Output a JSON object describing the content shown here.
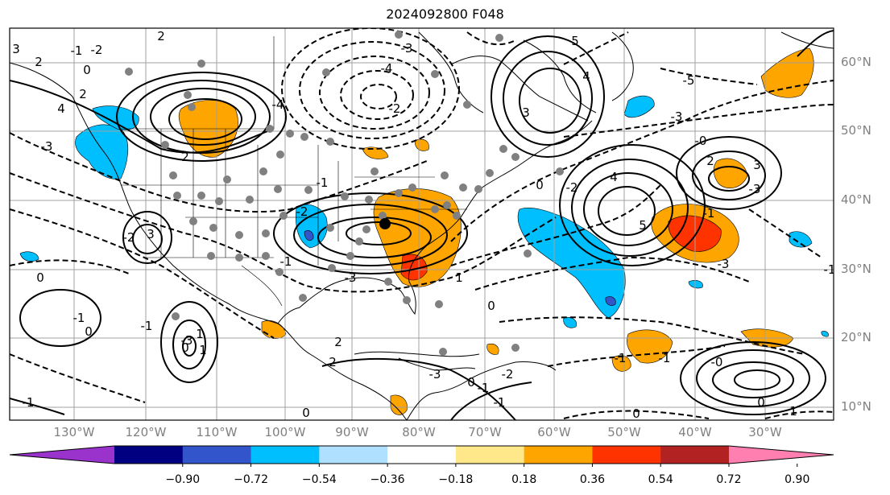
{
  "title": "2024092800 F048",
  "map": {
    "lat_ticks": [
      "60°N",
      "50°N",
      "40°N",
      "30°N",
      "20°N",
      "10°N"
    ],
    "lon_ticks": [
      "130°W",
      "120°W",
      "110°W",
      "100°W",
      "90°W",
      "80°W",
      "70°W",
      "60°W",
      "50°W",
      "40°W",
      "30°W"
    ],
    "contour_labels": [
      "3",
      "2",
      "2",
      "0",
      "4",
      "2",
      "-3",
      "-2",
      "-1",
      "2",
      "-4",
      "5",
      "4",
      "3",
      "-2",
      "-3",
      "-4",
      "5",
      "2",
      "4",
      "3",
      "-5",
      "-3",
      "-3",
      "-3",
      "3",
      "-2",
      "-1",
      "-1",
      "-2",
      "0",
      "0",
      "-1",
      "-1",
      "-3",
      "0",
      "1",
      "1",
      "2",
      "2",
      "-3",
      "1",
      "-3",
      "0",
      "-2",
      "-2",
      "-1",
      "-1",
      "-0",
      "-1",
      "-1",
      "0",
      "-1",
      "0",
      "1",
      "-1",
      "0",
      "0",
      "0",
      "-1",
      "-0"
    ],
    "colors": {
      "contour": "#000000",
      "gridline": "#a0a0a0",
      "station_marker": "#808080",
      "center_marker": "#000000",
      "tick_label": "#808080"
    }
  },
  "colorbar": {
    "ticks": [
      "−0.90",
      "−0.72",
      "−0.54",
      "−0.36",
      "−0.18",
      "0.18",
      "0.36",
      "0.54",
      "0.72",
      "0.90"
    ],
    "colors": [
      "#9933cc",
      "#000080",
      "#3355cc",
      "#00bfff",
      "#b0e0ff",
      "#ffffff",
      "#ffe88a",
      "#ffa500",
      "#ff3300",
      "#b22222",
      "#ff80b0"
    ]
  }
}
